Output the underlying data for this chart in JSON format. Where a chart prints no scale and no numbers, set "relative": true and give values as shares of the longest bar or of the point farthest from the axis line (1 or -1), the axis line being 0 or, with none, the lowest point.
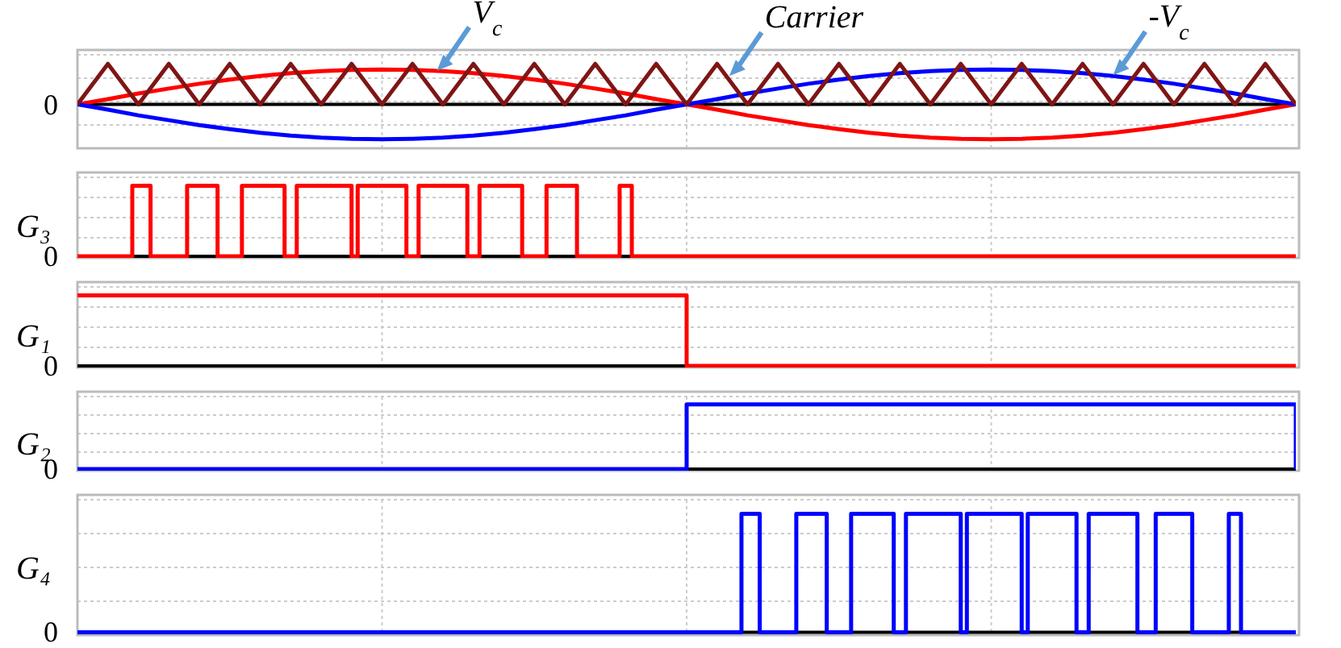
{
  "chart_data": [
    {
      "type": "line",
      "relative": true,
      "grid": true,
      "tick_labels": "y",
      "ref_lines": [
        {
          "axis": "y",
          "value": 0,
          "color": "#000000"
        }
      ],
      "categories": [
        null,
        null,
        null,
        null,
        null,
        null,
        null,
        null,
        null,
        null,
        null,
        null,
        null,
        null,
        null,
        null,
        null,
        null,
        null,
        null,
        null,
        null,
        null,
        null,
        null,
        null,
        null,
        null,
        null,
        null,
        null,
        null,
        null,
        null,
        null,
        null,
        null,
        null,
        null,
        null,
        null
      ],
      "series": [
        {
          "color": "#ff0000",
          "values": [
            0,
            0.13,
            0.27,
            0.39,
            0.51,
            0.61,
            0.7,
            0.77,
            0.82,
            0.85,
            0.86,
            0.85,
            0.82,
            0.77,
            0.7,
            0.61,
            0.51,
            0.39,
            0.27,
            0.13,
            0,
            -0.13,
            -0.27,
            -0.39,
            -0.51,
            -0.61,
            -0.7,
            -0.77,
            -0.82,
            -0.85,
            -0.86,
            -0.85,
            -0.82,
            -0.77,
            -0.7,
            -0.61,
            -0.51,
            -0.39,
            -0.27,
            -0.13,
            0
          ]
        },
        {
          "color": "#0000ff",
          "values": [
            0,
            -0.13,
            -0.27,
            -0.39,
            -0.51,
            -0.61,
            -0.7,
            -0.77,
            -0.82,
            -0.85,
            -0.86,
            -0.85,
            -0.82,
            -0.77,
            -0.7,
            -0.61,
            -0.51,
            -0.39,
            -0.27,
            -0.13,
            0,
            0.13,
            0.27,
            0.39,
            0.51,
            0.61,
            0.7,
            0.77,
            0.82,
            0.85,
            0.86,
            0.85,
            0.82,
            0.77,
            0.7,
            0.61,
            0.51,
            0.39,
            0.27,
            0.13,
            0
          ]
        },
        {
          "color": "#7f1515",
          "values": [
            0,
            1,
            0,
            1,
            0,
            1,
            0,
            1,
            0,
            1,
            0,
            1,
            0,
            1,
            0,
            1,
            0,
            1,
            0,
            1,
            0,
            1,
            0,
            1,
            0,
            1,
            0,
            1,
            0,
            1,
            0,
            1,
            0,
            1,
            0,
            1,
            0,
            1,
            0,
            1,
            0
          ]
        }
      ],
      "annotations": [
        "V$_{c}$",
        "Carrier",
        "-V$_{c}$",
        "0"
      ]
    },
    {
      "type": "step",
      "relative": true,
      "grid": true,
      "tick_labels": "y",
      "ylabel": "G₃",
      "ref_lines": [
        {
          "axis": "y",
          "value": 0,
          "color": "#000000"
        }
      ],
      "categories": [
        null,
        null,
        null,
        null,
        null,
        null,
        null,
        null,
        null,
        null,
        null,
        null,
        null,
        null,
        null,
        null,
        null,
        null,
        null,
        null,
        null,
        null,
        null,
        null,
        null,
        null,
        null,
        null,
        null,
        null,
        null,
        null,
        null,
        null,
        null,
        null,
        null,
        null,
        null,
        null,
        null,
        null,
        null,
        null,
        null,
        null,
        null,
        null,
        null,
        null,
        null,
        null,
        null,
        null,
        null,
        null,
        null,
        null,
        null,
        null,
        null,
        null,
        null,
        null,
        null,
        null,
        null,
        null,
        null,
        null,
        null,
        null,
        null,
        null,
        null,
        null,
        null,
        null,
        null,
        null,
        null,
        null,
        null,
        null,
        null,
        null,
        null,
        null,
        null,
        null,
        null,
        null,
        null,
        null,
        null,
        null,
        null,
        null,
        null,
        null,
        null,
        null,
        null,
        null,
        null,
        null,
        null,
        null,
        null,
        null,
        null,
        null,
        null,
        null,
        null,
        null,
        null,
        null,
        null,
        null,
        null,
        null,
        null,
        null,
        null,
        null,
        null,
        null,
        null,
        null,
        null,
        null,
        null,
        null,
        null,
        null,
        null,
        null,
        null,
        null,
        null,
        null,
        null,
        null,
        null,
        null,
        null,
        null,
        null,
        null,
        null,
        null,
        null,
        null,
        null,
        null,
        null,
        null,
        null,
        null,
        null,
        null,
        null,
        null,
        null,
        null,
        null,
        null,
        null,
        null,
        null,
        null,
        null,
        null,
        null,
        null,
        null,
        null,
        null,
        null,
        null,
        null,
        null,
        null,
        null,
        null,
        null,
        null,
        null,
        null,
        null,
        null,
        null,
        null,
        null,
        null,
        null,
        null,
        null,
        null,
        null
      ],
      "series": [
        {
          "color": "#ff0000",
          "values": [
            0,
            0,
            0,
            0,
            0,
            0,
            0,
            0,
            0,
            1,
            1,
            1,
            0,
            0,
            0,
            0,
            0,
            0,
            1,
            1,
            1,
            1,
            1,
            0,
            0,
            0,
            0,
            1,
            1,
            1,
            1,
            1,
            1,
            1,
            0,
            0,
            1,
            1,
            1,
            1,
            1,
            1,
            1,
            1,
            1,
            0,
            1,
            1,
            1,
            1,
            1,
            1,
            1,
            1,
            0,
            0,
            1,
            1,
            1,
            1,
            1,
            1,
            1,
            1,
            0,
            0,
            1,
            1,
            1,
            1,
            1,
            1,
            1,
            0,
            0,
            0,
            0,
            1,
            1,
            1,
            1,
            1,
            0,
            0,
            0,
            0,
            0,
            0,
            0,
            1,
            1,
            0,
            0,
            0,
            0,
            0,
            0,
            0,
            0,
            0,
            0,
            0,
            0,
            0,
            0,
            0,
            0,
            0,
            0,
            0,
            0,
            0,
            0,
            0,
            0,
            0,
            0,
            0,
            0,
            0,
            0,
            0,
            0,
            0,
            0,
            0,
            0,
            0,
            0,
            0,
            0,
            0,
            0,
            0,
            0,
            0,
            0,
            0,
            0,
            0,
            0,
            0,
            0,
            0,
            0,
            0,
            0,
            0,
            0,
            0,
            0,
            0,
            0,
            0,
            0,
            0,
            0,
            0,
            0,
            0,
            0,
            0,
            0,
            0,
            0,
            0,
            0,
            0,
            0,
            0,
            0,
            0,
            0,
            0,
            0,
            0,
            0,
            0,
            0,
            0,
            0,
            0,
            0,
            0,
            0,
            0,
            0,
            0,
            0,
            0,
            0,
            0,
            0,
            0,
            0,
            0,
            0,
            0,
            0,
            0,
            0
          ]
        }
      ],
      "annotations": [
        "0"
      ]
    },
    {
      "type": "step",
      "relative": true,
      "grid": true,
      "tick_labels": "y",
      "ylabel": "G₁",
      "ref_lines": [
        {
          "axis": "y",
          "value": 0,
          "color": "#000000"
        }
      ],
      "categories": [
        null,
        null,
        null
      ],
      "series": [
        {
          "color": "#ff0000",
          "values": [
            1,
            0,
            0
          ]
        }
      ],
      "annotations": [
        "0"
      ]
    },
    {
      "type": "step",
      "relative": true,
      "grid": true,
      "tick_labels": "y",
      "ylabel": "G₂",
      "ref_lines": [
        {
          "axis": "y",
          "value": 0,
          "color": "#000000"
        }
      ],
      "categories": [
        null,
        null,
        null
      ],
      "series": [
        {
          "color": "#0000ff",
          "values": [
            0,
            1,
            0
          ]
        }
      ],
      "annotations": [
        "0"
      ]
    },
    {
      "type": "step",
      "relative": true,
      "grid": true,
      "tick_labels": "y",
      "ylabel": "G₄",
      "ref_lines": [
        {
          "axis": "y",
          "value": 0,
          "color": "#000000"
        }
      ],
      "categories": [
        null,
        null,
        null,
        null,
        null,
        null,
        null,
        null,
        null,
        null,
        null,
        null,
        null,
        null,
        null,
        null,
        null,
        null,
        null,
        null,
        null,
        null,
        null,
        null,
        null,
        null,
        null,
        null,
        null,
        null,
        null,
        null,
        null,
        null,
        null,
        null,
        null,
        null,
        null,
        null,
        null,
        null,
        null,
        null,
        null,
        null,
        null,
        null,
        null,
        null,
        null,
        null,
        null,
        null,
        null,
        null,
        null,
        null,
        null,
        null,
        null,
        null,
        null,
        null,
        null,
        null,
        null,
        null,
        null,
        null,
        null,
        null,
        null,
        null,
        null,
        null,
        null,
        null,
        null,
        null,
        null,
        null,
        null,
        null,
        null,
        null,
        null,
        null,
        null,
        null,
        null,
        null,
        null,
        null,
        null,
        null,
        null,
        null,
        null,
        null,
        null,
        null,
        null,
        null,
        null,
        null,
        null,
        null,
        null,
        null,
        null,
        null,
        null,
        null,
        null,
        null,
        null,
        null,
        null,
        null,
        null,
        null,
        null,
        null,
        null,
        null,
        null,
        null,
        null,
        null,
        null,
        null,
        null,
        null,
        null,
        null,
        null,
        null,
        null,
        null,
        null,
        null,
        null,
        null,
        null,
        null,
        null,
        null,
        null,
        null,
        null,
        null,
        null,
        null,
        null,
        null,
        null,
        null,
        null,
        null,
        null,
        null,
        null,
        null,
        null,
        null,
        null,
        null,
        null,
        null,
        null,
        null,
        null,
        null,
        null,
        null,
        null,
        null,
        null,
        null,
        null,
        null,
        null,
        null,
        null,
        null,
        null,
        null,
        null,
        null,
        null,
        null,
        null,
        null,
        null,
        null,
        null,
        null,
        null,
        null,
        null
      ],
      "series": [
        {
          "color": "#0000ff",
          "values": [
            0,
            0,
            0,
            0,
            0,
            0,
            0,
            0,
            0,
            0,
            0,
            0,
            0,
            0,
            0,
            0,
            0,
            0,
            0,
            0,
            0,
            0,
            0,
            0,
            0,
            0,
            0,
            0,
            0,
            0,
            0,
            0,
            0,
            0,
            0,
            0,
            0,
            0,
            0,
            0,
            0,
            0,
            0,
            0,
            0,
            0,
            0,
            0,
            0,
            0,
            0,
            0,
            0,
            0,
            0,
            0,
            0,
            0,
            0,
            0,
            0,
            0,
            0,
            0,
            0,
            0,
            0,
            0,
            0,
            0,
            0,
            0,
            0,
            0,
            0,
            0,
            0,
            0,
            0,
            0,
            0,
            0,
            0,
            0,
            0,
            0,
            0,
            0,
            0,
            0,
            0,
            0,
            0,
            0,
            0,
            0,
            0,
            0,
            0,
            0,
            0,
            0,
            0,
            0,
            0,
            0,
            0,
            0,
            0,
            1,
            1,
            1,
            0,
            0,
            0,
            0,
            0,
            0,
            1,
            1,
            1,
            1,
            1,
            0,
            0,
            0,
            0,
            1,
            1,
            1,
            1,
            1,
            1,
            1,
            0,
            0,
            1,
            1,
            1,
            1,
            1,
            1,
            1,
            1,
            1,
            0,
            1,
            1,
            1,
            1,
            1,
            1,
            1,
            1,
            1,
            0,
            1,
            1,
            1,
            1,
            1,
            1,
            1,
            1,
            0,
            0,
            1,
            1,
            1,
            1,
            1,
            1,
            1,
            1,
            0,
            0,
            0,
            1,
            1,
            1,
            1,
            1,
            1,
            0,
            0,
            0,
            0,
            0,
            0,
            1,
            1,
            0,
            0,
            0,
            0,
            0,
            0,
            0,
            0,
            0,
            0
          ]
        }
      ],
      "annotations": [
        "0"
      ]
    }
  ]
}
